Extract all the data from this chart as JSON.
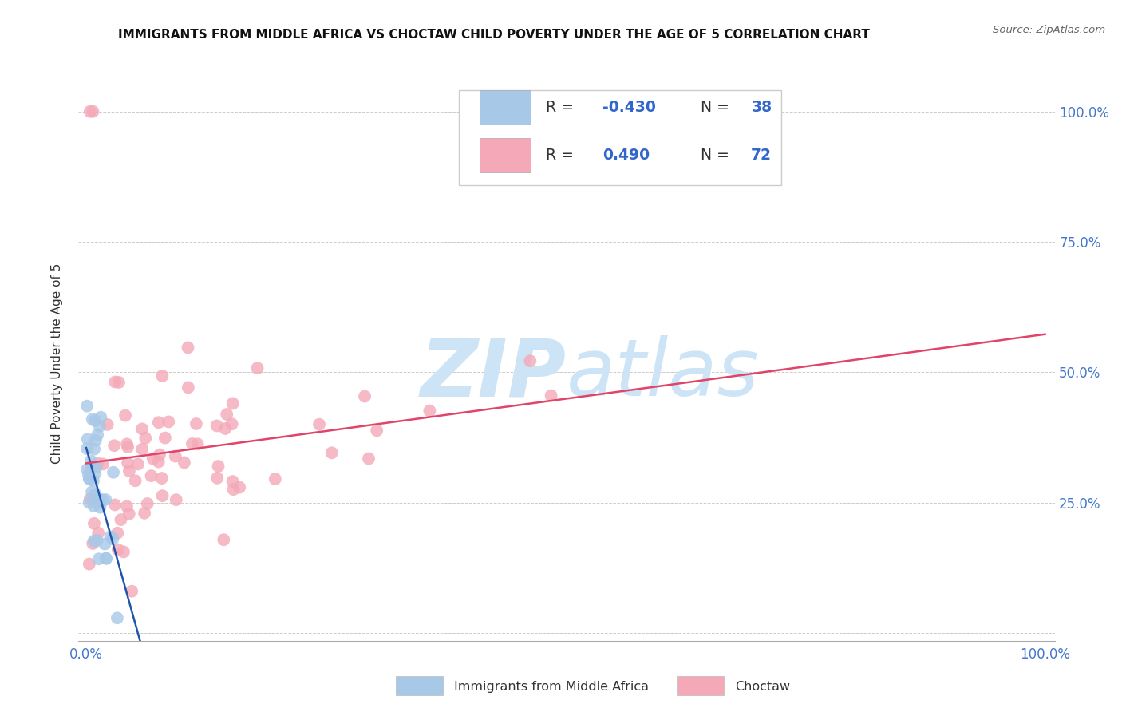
{
  "title": "IMMIGRANTS FROM MIDDLE AFRICA VS CHOCTAW CHILD POVERTY UNDER THE AGE OF 5 CORRELATION CHART",
  "source": "Source: ZipAtlas.com",
  "ylabel": "Child Poverty Under the Age of 5",
  "legend_label1": "Immigrants from Middle Africa",
  "legend_label2": "Choctaw",
  "R_blue": -0.43,
  "N_blue": 38,
  "R_pink": 0.49,
  "N_pink": 72,
  "blue_color": "#a8c8e8",
  "pink_color": "#f4a8b8",
  "blue_line_color": "#2255aa",
  "pink_line_color": "#e04468",
  "background_color": "#ffffff",
  "watermark_color": "#cce4f5",
  "title_fontsize": 11,
  "axis_label_color": "#4477cc",
  "text_color": "#333333"
}
